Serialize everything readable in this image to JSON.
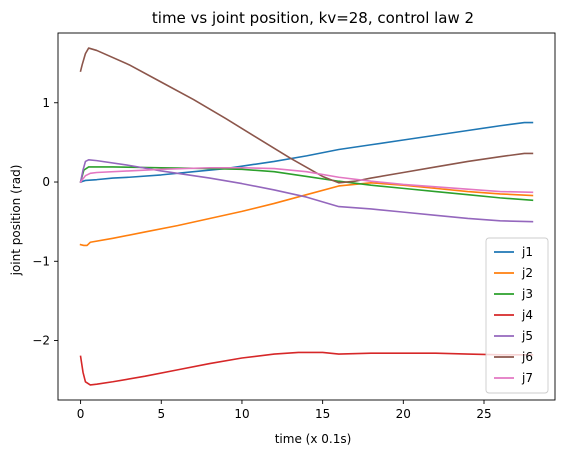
{
  "chart_data": {
    "type": "line",
    "title": "time vs joint position, kv=28, control law 2",
    "xlabel": "time (x 0.1s)",
    "ylabel": "joint position (rad)",
    "xlim": [
      -1.4,
      29.4
    ],
    "ylim": [
      -2.75,
      1.88
    ],
    "xticks": [
      0,
      5,
      10,
      15,
      20,
      25
    ],
    "xtick_labels": [
      "0",
      "5",
      "10",
      "15",
      "20",
      "25"
    ],
    "yticks": [
      1,
      0,
      -1,
      -2
    ],
    "ytick_labels": [
      "1",
      "0",
      "−1",
      "−2"
    ],
    "grid": false,
    "legend_position": "lower-right",
    "series": [
      {
        "name": "j1",
        "color": "#1f77b4",
        "x": [
          0,
          0.3,
          1,
          2,
          3,
          5,
          7,
          9,
          10,
          12,
          14,
          16,
          18,
          20,
          22,
          24,
          26,
          27.5,
          28
        ],
        "y": [
          0,
          0.02,
          0.03,
          0.05,
          0.06,
          0.09,
          0.13,
          0.17,
          0.2,
          0.26,
          0.33,
          0.41,
          0.47,
          0.53,
          0.59,
          0.65,
          0.71,
          0.75,
          0.75
        ]
      },
      {
        "name": "j2",
        "color": "#ff7f0e",
        "x": [
          0,
          0.2,
          0.4,
          0.6,
          2,
          4,
          6,
          8,
          10,
          12,
          14,
          16,
          18,
          20,
          22,
          24,
          26,
          28
        ],
        "y": [
          -0.79,
          -0.8,
          -0.8,
          -0.76,
          -0.71,
          -0.63,
          -0.55,
          -0.46,
          -0.37,
          -0.27,
          -0.16,
          -0.05,
          -0.01,
          -0.04,
          -0.08,
          -0.12,
          -0.15,
          -0.17
        ]
      },
      {
        "name": "j3",
        "color": "#2ca02c",
        "x": [
          0,
          0.2,
          0.5,
          2,
          5,
          8,
          10,
          12,
          14,
          16,
          18,
          20,
          22,
          24,
          26,
          28
        ],
        "y": [
          0,
          0.15,
          0.19,
          0.19,
          0.18,
          0.17,
          0.16,
          0.13,
          0.07,
          0.01,
          -0.04,
          -0.08,
          -0.12,
          -0.16,
          -0.2,
          -0.23
        ]
      },
      {
        "name": "j4",
        "color": "#d62728",
        "x": [
          0,
          0.15,
          0.3,
          0.6,
          1,
          2,
          4,
          6,
          8,
          10,
          12,
          13.5,
          15,
          16,
          18,
          20,
          22,
          24,
          26,
          28
        ],
        "y": [
          -2.2,
          -2.4,
          -2.52,
          -2.56,
          -2.55,
          -2.52,
          -2.45,
          -2.37,
          -2.29,
          -2.22,
          -2.17,
          -2.15,
          -2.15,
          -2.17,
          -2.16,
          -2.16,
          -2.16,
          -2.17,
          -2.18,
          -2.18
        ]
      },
      {
        "name": "j5",
        "color": "#9467bd",
        "x": [
          0,
          0.15,
          0.3,
          0.5,
          1,
          3,
          5,
          8,
          10,
          12,
          14,
          16,
          18,
          20,
          22,
          24,
          26,
          28
        ],
        "y": [
          0,
          0.15,
          0.26,
          0.28,
          0.27,
          0.21,
          0.14,
          0.05,
          -0.02,
          -0.1,
          -0.19,
          -0.31,
          -0.34,
          -0.38,
          -0.42,
          -0.46,
          -0.49,
          -0.5
        ]
      },
      {
        "name": "j6",
        "color": "#8c564b",
        "x": [
          0,
          0.1,
          0.3,
          0.5,
          1,
          3,
          5,
          7,
          9,
          11,
          13,
          15,
          16,
          17,
          18,
          20,
          22,
          24,
          26,
          27.5,
          28
        ],
        "y": [
          1.4,
          1.48,
          1.62,
          1.69,
          1.66,
          1.48,
          1.26,
          1.04,
          0.8,
          0.55,
          0.3,
          0.07,
          -0.01,
          0.01,
          0.05,
          0.12,
          0.19,
          0.26,
          0.32,
          0.36,
          0.36
        ]
      },
      {
        "name": "j7",
        "color": "#e377c2",
        "x": [
          0,
          0.3,
          0.6,
          1,
          3,
          5,
          8,
          10,
          12,
          14,
          16,
          18,
          20,
          22,
          24,
          26,
          28
        ],
        "y": [
          0,
          0.08,
          0.11,
          0.12,
          0.14,
          0.16,
          0.18,
          0.18,
          0.17,
          0.13,
          0.06,
          0.01,
          -0.03,
          -0.06,
          -0.09,
          -0.12,
          -0.13
        ]
      }
    ]
  }
}
